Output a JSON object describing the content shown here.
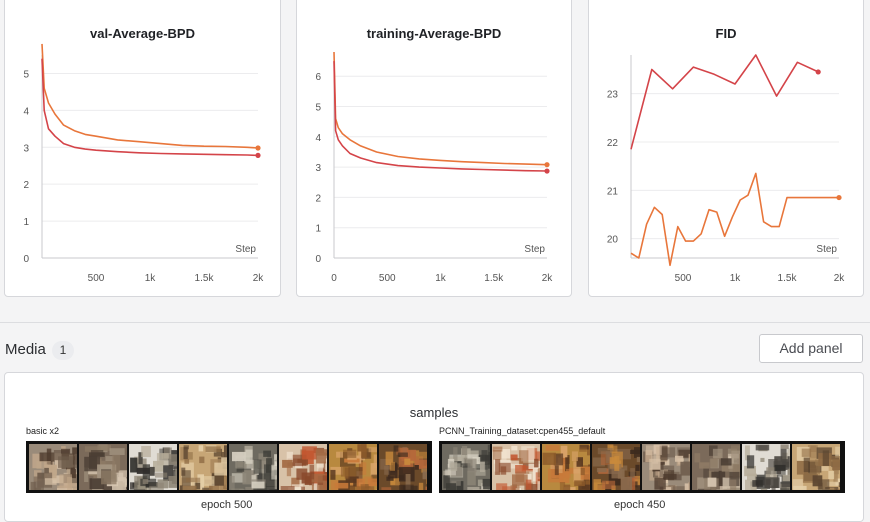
{
  "charts": [
    {
      "title": "val-Average-BPD",
      "xlabel": "Step",
      "x_ticks": [
        "500",
        "1k",
        "1.5k",
        "2k"
      ],
      "y_ticks": [
        "0",
        "1",
        "2",
        "3",
        "4",
        "5"
      ]
    },
    {
      "title": "training-Average-BPD",
      "xlabel": "Step",
      "x_ticks": [
        "0",
        "500",
        "1k",
        "1.5k",
        "2k"
      ],
      "y_ticks": [
        "0",
        "1",
        "2",
        "3",
        "4",
        "5",
        "6"
      ]
    },
    {
      "title": "FID",
      "xlabel": "Step",
      "x_ticks": [
        "500",
        "1k",
        "1.5k",
        "2k"
      ],
      "y_ticks": [
        "20",
        "21",
        "22",
        "23"
      ]
    }
  ],
  "chart_data": [
    {
      "type": "line",
      "title": "val-Average-BPD",
      "xlabel": "Step",
      "ylabel": "",
      "xlim": [
        0,
        2000
      ],
      "ylim": [
        0,
        5.5
      ],
      "series": [
        {
          "color": "#e8763b",
          "x": [
            0,
            20,
            60,
            120,
            200,
            300,
            400,
            500,
            700,
            900,
            1100,
            1300,
            1500,
            1700,
            1900,
            2000
          ],
          "y": [
            5.8,
            4.6,
            4.2,
            3.9,
            3.6,
            3.45,
            3.35,
            3.3,
            3.2,
            3.15,
            3.1,
            3.05,
            3.03,
            3.02,
            3.0,
            2.98
          ]
        },
        {
          "color": "#d44449",
          "x": [
            0,
            20,
            60,
            120,
            200,
            300,
            400,
            500,
            700,
            900,
            1100,
            1300,
            1500,
            1700,
            1900,
            2000
          ],
          "y": [
            5.4,
            4.0,
            3.5,
            3.3,
            3.1,
            3.0,
            2.95,
            2.92,
            2.88,
            2.85,
            2.83,
            2.82,
            2.81,
            2.8,
            2.79,
            2.78
          ]
        }
      ]
    },
    {
      "type": "line",
      "title": "training-Average-BPD",
      "xlabel": "Step",
      "ylabel": "",
      "xlim": [
        0,
        2000
      ],
      "ylim": [
        0,
        6.7
      ],
      "series": [
        {
          "color": "#e8763b",
          "x": [
            0,
            15,
            40,
            80,
            150,
            250,
            400,
            600,
            800,
            1000,
            1200,
            1400,
            1600,
            1800,
            2000
          ],
          "y": [
            6.8,
            4.6,
            4.3,
            4.1,
            3.9,
            3.7,
            3.5,
            3.35,
            3.27,
            3.22,
            3.18,
            3.15,
            3.12,
            3.1,
            3.08
          ]
        },
        {
          "color": "#d44449",
          "x": [
            0,
            15,
            40,
            80,
            150,
            250,
            400,
            600,
            800,
            1000,
            1200,
            1400,
            1600,
            1800,
            2000
          ],
          "y": [
            6.5,
            4.2,
            3.9,
            3.7,
            3.45,
            3.3,
            3.15,
            3.05,
            3.0,
            2.97,
            2.94,
            2.92,
            2.9,
            2.88,
            2.87
          ]
        }
      ]
    },
    {
      "type": "line",
      "title": "FID",
      "xlabel": "Step",
      "ylabel": "",
      "xlim": [
        0,
        2000
      ],
      "ylim": [
        19.6,
        23.8
      ],
      "series": [
        {
          "color": "#d44449",
          "x": [
            0,
            200,
            400,
            600,
            800,
            1000,
            1200,
            1400,
            1600,
            1800
          ],
          "y": [
            21.85,
            23.5,
            23.1,
            23.55,
            23.4,
            23.2,
            23.8,
            22.95,
            23.65,
            23.45
          ]
        },
        {
          "color": "#e8763b",
          "x": [
            0,
            75,
            150,
            225,
            300,
            375,
            450,
            525,
            600,
            675,
            750,
            825,
            900,
            975,
            1050,
            1125,
            1200,
            1275,
            1350,
            1425,
            1500,
            1575,
            1650,
            1725,
            1800,
            1875,
            1950,
            2000
          ],
          "y": [
            19.7,
            19.6,
            20.3,
            20.65,
            20.5,
            19.45,
            20.25,
            19.95,
            19.95,
            20.1,
            20.6,
            20.55,
            20.05,
            20.45,
            20.8,
            20.9,
            21.35,
            20.35,
            20.25,
            20.25,
            20.85,
            20.85,
            20.85,
            20.85,
            20.85,
            20.85,
            20.85,
            20.85
          ]
        }
      ]
    }
  ],
  "media": {
    "title": "Media",
    "count": "1",
    "add_panel": "Add panel",
    "panel_title": "samples",
    "groups": [
      {
        "label": "basic x2",
        "epoch": "epoch 500"
      },
      {
        "label": "PCNN_Training_dataset:cpen455_default",
        "epoch": "epoch 450"
      }
    ]
  }
}
